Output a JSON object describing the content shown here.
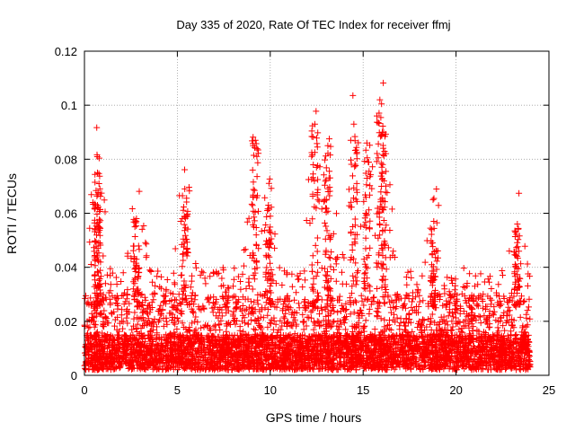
{
  "chart_data": {
    "type": "scatter",
    "title": "Day 335 of 2020, Rate Of TEC Index for receiver ffmj",
    "xlabel": "GPS time / hours",
    "ylabel": "ROTI / TECUs",
    "xlim": [
      0,
      25
    ],
    "ylim": [
      0,
      0.12
    ],
    "x_ticks": [
      0,
      5,
      10,
      15,
      20,
      25
    ],
    "x_tick_labels": [
      "0",
      "5",
      "10",
      "15",
      "20",
      "25"
    ],
    "y_ticks": [
      0,
      0.02,
      0.04,
      0.06,
      0.08,
      0.1,
      0.12
    ],
    "y_tick_labels": [
      "0",
      "0.02",
      "0.04",
      "0.06",
      "0.08",
      "0.1",
      "0.12"
    ],
    "grid": true,
    "marker": "+",
    "series": [
      {
        "name": "ROTI",
        "color": "#ff0000",
        "x_range": [
          0,
          24
        ],
        "baseline_range": [
          0.002,
          0.03
        ],
        "notable_points": [
          {
            "x": 0.7,
            "y": 0.075
          },
          {
            "x": 0.7,
            "y": 0.063
          },
          {
            "x": 2.8,
            "y": 0.058
          },
          {
            "x": 5.4,
            "y": 0.069
          },
          {
            "x": 9.2,
            "y": 0.087
          },
          {
            "x": 9.9,
            "y": 0.063
          },
          {
            "x": 12.4,
            "y": 0.093
          },
          {
            "x": 13.1,
            "y": 0.085
          },
          {
            "x": 14.5,
            "y": 0.093
          },
          {
            "x": 15.2,
            "y": 0.086
          },
          {
            "x": 15.9,
            "y": 0.102
          },
          {
            "x": 16.1,
            "y": 0.09
          },
          {
            "x": 18.8,
            "y": 0.057
          },
          {
            "x": 23.3,
            "y": 0.056
          }
        ]
      }
    ]
  }
}
